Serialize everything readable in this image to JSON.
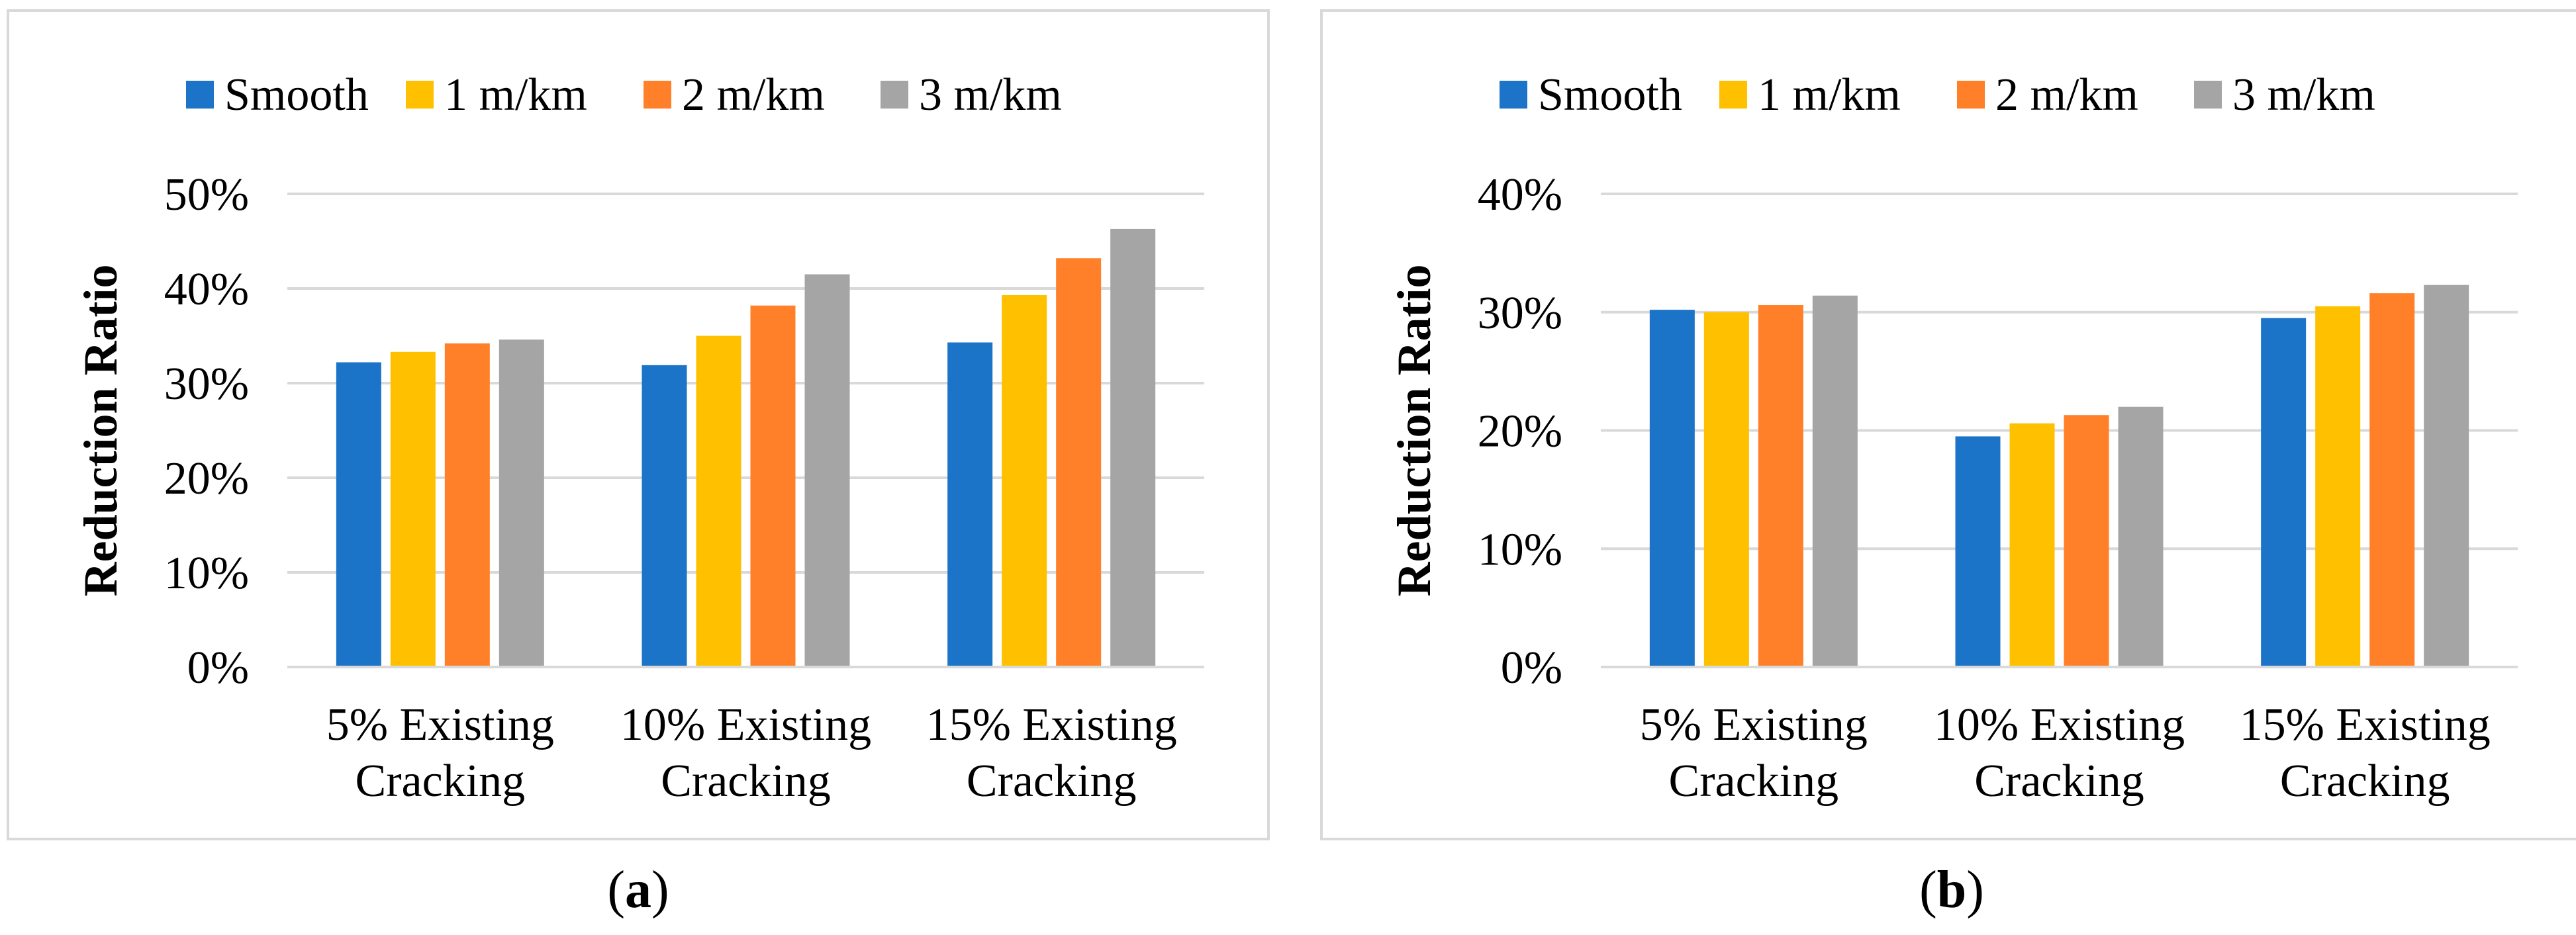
{
  "colors": {
    "series": [
      "#1b74c8",
      "#ffc000",
      "#ff8028",
      "#a5a5a5"
    ],
    "grid": "#d9d9d9",
    "text": "#000000"
  },
  "captions": {
    "a_open": "(",
    "a_letter": "a",
    "a_close": ")",
    "b_open": "(",
    "b_letter": "b",
    "b_close": ")"
  },
  "chart_data": [
    {
      "id": "a",
      "type": "bar",
      "title": "",
      "xlabel": "",
      "ylabel": "Reduction Ratio",
      "ylim": [
        0,
        0.5
      ],
      "yticks": [
        0,
        0.1,
        0.2,
        0.3,
        0.4,
        0.5
      ],
      "ytick_labels": [
        "0%",
        "10%",
        "20%",
        "30%",
        "40%",
        "50%"
      ],
      "legend_position": "top",
      "categories": [
        [
          "5% Existing",
          "Cracking"
        ],
        [
          "10% Existing",
          "Cracking"
        ],
        [
          "15% Existing",
          "Cracking"
        ]
      ],
      "series": [
        {
          "name": "Smooth",
          "values": [
            0.322,
            0.319,
            0.343
          ]
        },
        {
          "name": "1 m/km",
          "values": [
            0.333,
            0.35,
            0.393
          ]
        },
        {
          "name": "2 m/km",
          "values": [
            0.342,
            0.382,
            0.432
          ]
        },
        {
          "name": "3 m/km",
          "values": [
            0.346,
            0.415,
            0.463
          ]
        }
      ]
    },
    {
      "id": "b",
      "type": "bar",
      "title": "",
      "xlabel": "",
      "ylabel": "Reduction Ratio",
      "ylim": [
        0,
        0.4
      ],
      "yticks": [
        0,
        0.1,
        0.2,
        0.3,
        0.4
      ],
      "ytick_labels": [
        "0%",
        "10%",
        "20%",
        "30%",
        "40%"
      ],
      "legend_position": "top",
      "categories": [
        [
          "5% Existing",
          "Cracking"
        ],
        [
          "10% Existing",
          "Cracking"
        ],
        [
          "15% Existing",
          "Cracking"
        ]
      ],
      "series": [
        {
          "name": "Smooth",
          "values": [
            0.302,
            0.195,
            0.295
          ]
        },
        {
          "name": "1 m/km",
          "values": [
            0.3,
            0.206,
            0.305
          ]
        },
        {
          "name": "2 m/km",
          "values": [
            0.306,
            0.213,
            0.316
          ]
        },
        {
          "name": "3 m/km",
          "values": [
            0.314,
            0.22,
            0.323
          ]
        }
      ]
    }
  ]
}
